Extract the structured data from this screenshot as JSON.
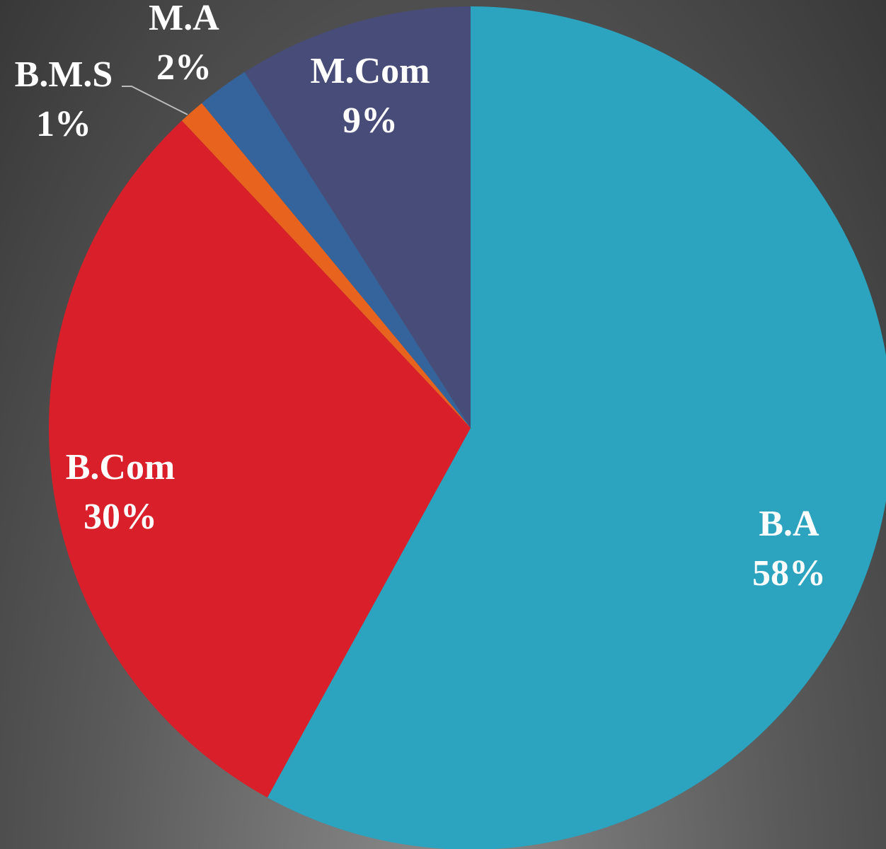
{
  "chart_data": {
    "type": "pie",
    "categories": [
      "B.A",
      "B.Com",
      "B.M.S",
      "M.A",
      "M.Com"
    ],
    "values": [
      58,
      30,
      1,
      2,
      9
    ],
    "value_labels": [
      "58%",
      "30%",
      "1%",
      "2%",
      "9%"
    ],
    "colors": [
      "#2ca3bf",
      "#d91f2a",
      "#e8631d",
      "#35639c",
      "#474c78"
    ]
  }
}
